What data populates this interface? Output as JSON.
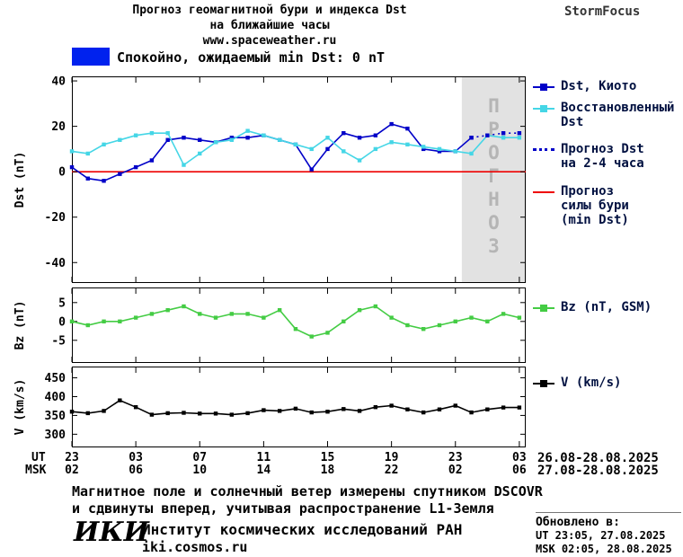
{
  "header": {
    "title_line1": "Прогноз геомагнитной бури и индекса Dst",
    "title_line2": "на ближайшие часы",
    "website": "www.spaceweather.ru",
    "brand": "StormFocus"
  },
  "banner": {
    "label": "Спокойно, ожидаемый min Dst: 0 nT"
  },
  "colors": {
    "kyoto": "#0000C8",
    "restored": "#45D6E6",
    "forecast": "#0000C8",
    "minline": "#EE0000",
    "bz": "#44CC44",
    "v": "#000000",
    "banner": "#0022EE",
    "forecast_bg": "#E2E2E2",
    "forecast_text": "#B5B5B5"
  },
  "chart_data": [
    {
      "id": "dst-plot",
      "type": "line",
      "ylabel": "Dst (nT)",
      "ylim": [
        -49,
        42
      ],
      "yticks": [
        40,
        20,
        0,
        -20,
        -40
      ],
      "xlim": [
        0,
        28.4
      ],
      "x_unit": "hours from 23 UT 26.08.2025, 1 point per hour",
      "forecast_region": [
        24.4,
        28.4
      ],
      "region_label": "ПРОГНОЗ",
      "hline": {
        "y": 0,
        "series": "minline",
        "label": "Прогноз силы бури (min Dst)"
      },
      "series": [
        {
          "name": "dst-kyoto",
          "label": "Dst, Киото",
          "color_key": "kyoto",
          "marker": true,
          "values": [
            2,
            -3,
            -4,
            -1,
            2,
            5,
            14,
            15,
            14,
            13,
            15,
            15,
            16,
            14,
            12,
            1,
            10,
            17,
            15,
            16,
            21,
            19,
            10,
            9,
            9,
            15
          ]
        },
        {
          "name": "restored-dst",
          "label": "Восстановленный Dst",
          "color_key": "restored",
          "marker": true,
          "values": [
            9,
            8,
            12,
            14,
            16,
            17,
            17,
            3,
            8,
            13,
            14,
            18,
            16,
            14,
            12,
            10,
            15,
            9,
            5,
            10,
            13,
            12,
            11,
            10,
            9,
            8,
            16,
            15,
            15
          ]
        },
        {
          "name": "forecast-dst",
          "label": "Прогноз Dst на 2-4 часа",
          "color_key": "forecast",
          "marker": true,
          "dash": "2,4",
          "x": [
            25,
            26,
            27,
            28
          ],
          "values": [
            15,
            16,
            17,
            17
          ]
        }
      ]
    },
    {
      "id": "bz-plot",
      "type": "line",
      "ylabel": "Bz (nT)",
      "ylim": [
        -11,
        9
      ],
      "yticks": [
        5,
        0,
        -5
      ],
      "series": [
        {
          "name": "bz-gsm",
          "label": "Bz (nT, GSM)",
          "color_key": "bz",
          "marker": true,
          "values": [
            0,
            -1,
            0,
            0,
            1,
            2,
            3,
            4,
            2,
            1,
            2,
            2,
            1,
            3,
            -2,
            -4,
            -3,
            0,
            3,
            4,
            1,
            -1,
            -2,
            -1,
            0,
            1,
            0,
            2,
            1
          ]
        }
      ]
    },
    {
      "id": "v-plot",
      "type": "line",
      "ylabel": "V (km/s)",
      "ylim": [
        265,
        480
      ],
      "yticks": [
        450,
        400,
        350,
        300
      ],
      "series": [
        {
          "name": "solar-wind-speed",
          "label": "V (km/s)",
          "color_key": "v",
          "marker": true,
          "values": [
            360,
            356,
            362,
            390,
            372,
            352,
            356,
            357,
            355,
            355,
            352,
            356,
            364,
            362,
            368,
            358,
            360,
            367,
            362,
            372,
            376,
            366,
            358,
            366,
            376,
            358,
            366,
            371,
            371
          ]
        }
      ]
    }
  ],
  "xaxis": {
    "tick_hours": [
      0,
      4,
      8,
      12,
      16,
      20,
      24,
      28
    ],
    "ut_label": "UT",
    "msk_label": "MSK",
    "ut_ticks": [
      "23",
      "03",
      "07",
      "11",
      "15",
      "19",
      "23",
      "03"
    ],
    "msk_ticks": [
      "02",
      "06",
      "10",
      "14",
      "18",
      "22",
      "02",
      "06"
    ],
    "ut_date_range": "26.08-28.08.2025",
    "msk_date_range": "27.08-28.08.2025"
  },
  "legend": {
    "items": [
      {
        "label": "Dst, Киото",
        "series": "kyoto"
      },
      {
        "label": "Восстановленный\nDst",
        "series": "restored"
      },
      {
        "label": "Прогноз Dst\nна 2-4 часа",
        "series": "forecast"
      },
      {
        "label": "Прогноз\nсилы бури\n(min Dst)",
        "series": "minline"
      },
      {
        "label": "Bz (nT, GSM)",
        "series": "bz"
      },
      {
        "label": "V (km/s)",
        "series": "v"
      }
    ]
  },
  "footer": {
    "note_line1": "Магнитное поле и солнечный ветер измерены спутником DSCOVR",
    "note_line2": "и сдвинуты вперед, учитывая распространение L1-Земля",
    "logo": "ИКИ",
    "institute": "Институт космических исследований РАН",
    "institute_site": "iki.cosmos.ru"
  },
  "updated": {
    "title": "Обновлено в:",
    "ut": "UT  23:05, 27.08.2025",
    "msk": "MSK 02:05, 28.08.2025"
  }
}
